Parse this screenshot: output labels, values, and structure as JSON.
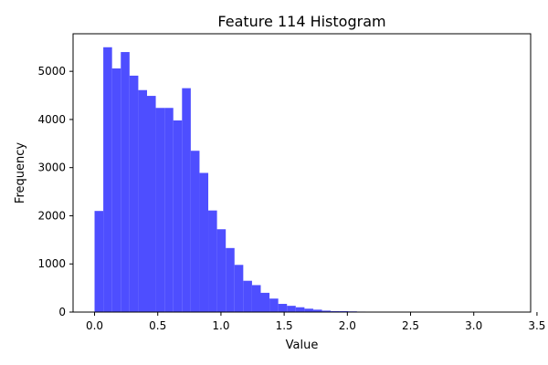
{
  "chart_data": {
    "type": "bar",
    "title": "Feature 114 Histogram",
    "xlabel": "Value",
    "ylabel": "Frequency",
    "bar_color": "#4444ff",
    "bar_opacity": 0.95,
    "bin_width": 0.0692,
    "bin_start": 0.0,
    "values": [
      2100,
      5500,
      5060,
      5400,
      4910,
      4610,
      4490,
      4240,
      4240,
      3980,
      4650,
      3350,
      2890,
      2110,
      1720,
      1330,
      980,
      650,
      560,
      400,
      280,
      170,
      130,
      100,
      70,
      50,
      30,
      20,
      20,
      15,
      10,
      8,
      5,
      5,
      3,
      2,
      2,
      3,
      2,
      2,
      0,
      0,
      0,
      0,
      0,
      0,
      0,
      0,
      0,
      0
    ],
    "xlim": [
      -0.17,
      3.45
    ],
    "ylim": [
      0,
      5780
    ],
    "xticks": [
      0.0,
      0.5,
      1.0,
      1.5,
      2.0,
      2.5,
      3.0,
      3.5
    ],
    "xtick_labels": [
      "0.0",
      "0.5",
      "1.0",
      "1.5",
      "2.0",
      "2.5",
      "3.0",
      "3.5"
    ],
    "yticks": [
      0,
      1000,
      2000,
      3000,
      4000,
      5000
    ],
    "ytick_labels": [
      "0",
      "1000",
      "2000",
      "3000",
      "4000",
      "5000"
    ],
    "grid": false,
    "legend": null
  }
}
